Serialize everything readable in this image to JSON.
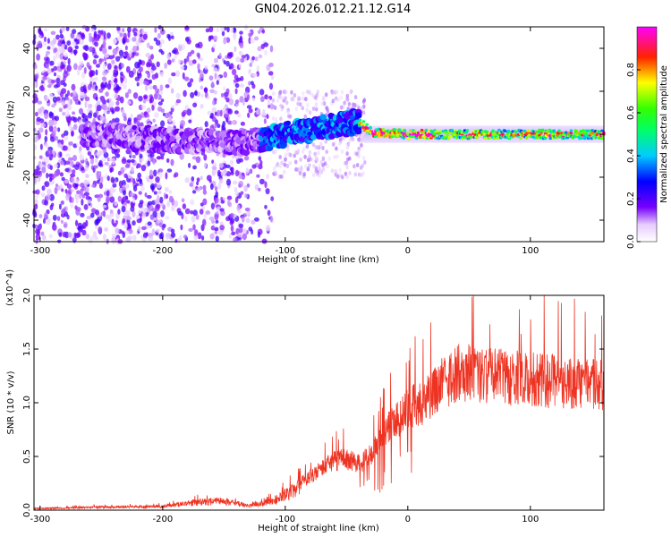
{
  "title": "GN04.2026.012.21.12.G14",
  "colors": {
    "snr_line": "#ee3322",
    "background": "#ffffff",
    "frame": "#000000"
  },
  "chart_data": [
    {
      "type": "heatmap",
      "xlabel": "Height of straight line (km)",
      "ylabel": "Frequency (Hz)",
      "xlim": [
        -305,
        160
      ],
      "ylim": [
        -50,
        50
      ],
      "x_ticks": [
        "-300",
        "-200",
        "-100",
        "0",
        "100"
      ],
      "y_ticks": [
        "-40",
        "-20",
        "0",
        "20",
        "40"
      ],
      "colorbar": {
        "label": "Normalized spectral amplitude",
        "range": [
          0.0,
          1.0
        ],
        "ticks": [
          "0.0",
          "0.2",
          "0.4",
          "0.6",
          "0.8"
        ],
        "colormap": "rainbow (white-violet-blue-cyan-green-yellow-red-magenta)"
      },
      "ridge_center_hz": [
        {
          "x": -300,
          "y": 0
        },
        {
          "x": -260,
          "y": 0
        },
        {
          "x": -200,
          "y": -3
        },
        {
          "x": -160,
          "y": -3
        },
        {
          "x": -130,
          "y": -4
        },
        {
          "x": -100,
          "y": 0
        },
        {
          "x": -80,
          "y": 2
        },
        {
          "x": -60,
          "y": 4
        },
        {
          "x": -40,
          "y": 6
        },
        {
          "x": -30,
          "y": 1
        },
        {
          "x": 0,
          "y": 0
        },
        {
          "x": 160,
          "y": 0
        }
      ],
      "peak_amplitude_segments": [
        {
          "x_range": [
            -300,
            -120
          ],
          "level": 0.15
        },
        {
          "x_range": [
            -120,
            -40
          ],
          "level": 0.35
        },
        {
          "x_range": [
            -40,
            20
          ],
          "level": 0.75
        },
        {
          "x_range": [
            20,
            160
          ],
          "level": 0.6
        }
      ]
    },
    {
      "type": "line",
      "xlabel": "Height of straight line (km)",
      "ylabel": "SNR (10 * v/v)",
      "y_multiplier": "(x10^4)",
      "xlim": [
        -305,
        160
      ],
      "ylim": [
        0.0,
        2.0
      ],
      "x_ticks": [
        "-300",
        "-200",
        "-100",
        "0",
        "100"
      ],
      "y_ticks": [
        "0.0",
        "0.5",
        "1.0",
        "1.5",
        "2.0"
      ],
      "series": [
        {
          "color": "#ee3322",
          "envelope": [
            {
              "x": -305,
              "y": 0.02
            },
            {
              "x": -250,
              "y": 0.04
            },
            {
              "x": -200,
              "y": 0.05
            },
            {
              "x": -175,
              "y": 0.1
            },
            {
              "x": -150,
              "y": 0.12
            },
            {
              "x": -130,
              "y": 0.06
            },
            {
              "x": -110,
              "y": 0.12
            },
            {
              "x": -100,
              "y": 0.2
            },
            {
              "x": -90,
              "y": 0.28
            },
            {
              "x": -80,
              "y": 0.38
            },
            {
              "x": -70,
              "y": 0.48
            },
            {
              "x": -60,
              "y": 0.55
            },
            {
              "x": -50,
              "y": 0.58
            },
            {
              "x": -40,
              "y": 0.52
            },
            {
              "x": -30,
              "y": 0.62
            },
            {
              "x": -20,
              "y": 0.85
            },
            {
              "x": -10,
              "y": 1.0
            },
            {
              "x": 0,
              "y": 1.15
            },
            {
              "x": 10,
              "y": 1.2
            },
            {
              "x": 20,
              "y": 1.3
            },
            {
              "x": 30,
              "y": 1.45
            },
            {
              "x": 40,
              "y": 1.55
            },
            {
              "x": 50,
              "y": 1.55
            },
            {
              "x": 60,
              "y": 1.52
            },
            {
              "x": 80,
              "y": 1.5
            },
            {
              "x": 100,
              "y": 1.47
            },
            {
              "x": 120,
              "y": 1.45
            },
            {
              "x": 140,
              "y": 1.42
            },
            {
              "x": 160,
              "y": 1.4
            }
          ]
        }
      ]
    }
  ]
}
